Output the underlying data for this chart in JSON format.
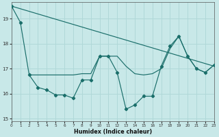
{
  "xlabel": "Humidex (Indice chaleur)",
  "bg_color": "#c8e8e8",
  "grid_color": "#b0d8d8",
  "line_color": "#1a6e6a",
  "xlim": [
    0,
    23
  ],
  "ylim": [
    14.9,
    19.65
  ],
  "yticks": [
    15,
    16,
    17,
    18,
    19
  ],
  "xticks": [
    0,
    1,
    2,
    3,
    4,
    5,
    6,
    7,
    8,
    9,
    10,
    11,
    12,
    13,
    14,
    15,
    16,
    17,
    18,
    19,
    20,
    21,
    22,
    23
  ],
  "line1_x": [
    0,
    1,
    2,
    3,
    4,
    5,
    6,
    7,
    8,
    9,
    10,
    11,
    12,
    13,
    14,
    15,
    16,
    17,
    18,
    19,
    20,
    21,
    22,
    23
  ],
  "line1_y": [
    19.5,
    18.85,
    16.75,
    16.25,
    16.15,
    15.95,
    15.95,
    15.82,
    16.55,
    16.55,
    17.5,
    17.5,
    16.85,
    15.38,
    15.55,
    15.9,
    15.9,
    17.1,
    17.9,
    18.3,
    17.5,
    17.0,
    16.85,
    17.15
  ],
  "trend_x": [
    0,
    23
  ],
  "trend_y": [
    19.5,
    17.1
  ],
  "smooth_x": [
    2,
    3,
    4,
    5,
    6,
    7,
    8,
    9,
    10,
    11,
    12,
    13,
    14,
    15,
    16,
    17,
    18,
    19,
    20,
    21,
    22,
    23
  ],
  "smooth_y": [
    16.75,
    16.75,
    16.75,
    16.75,
    16.75,
    16.75,
    16.8,
    16.8,
    17.5,
    17.5,
    17.5,
    17.1,
    16.8,
    16.75,
    16.8,
    17.0,
    17.8,
    18.3,
    17.5,
    17.0,
    16.85,
    17.15
  ]
}
